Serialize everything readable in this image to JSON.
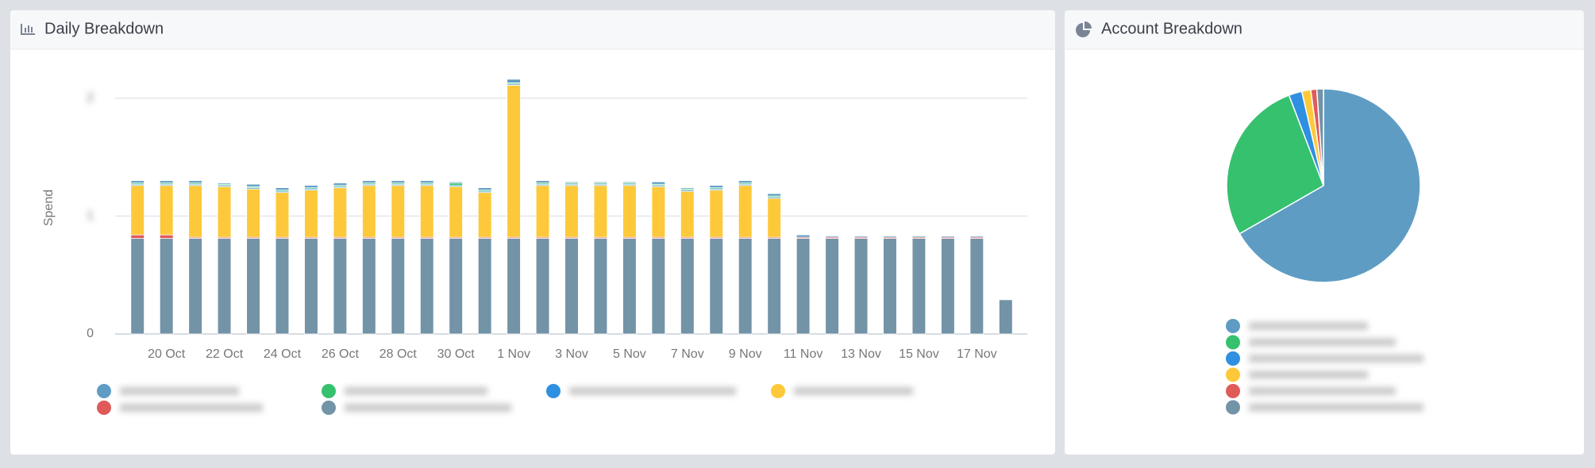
{
  "chart_data": [
    {
      "type": "bar",
      "stacked": true,
      "title": "Daily Breakdown",
      "y_label": "Spend",
      "categories": [
        null,
        "20 Oct",
        null,
        "22 Oct",
        null,
        "24 Oct",
        null,
        "26 Oct",
        null,
        "28 Oct",
        null,
        "30 Oct",
        null,
        "1 Nov",
        null,
        "3 Nov",
        null,
        "5 Nov",
        null,
        "7 Nov",
        null,
        "9 Nov",
        null,
        "11 Nov",
        null,
        "13 Nov",
        null,
        "15 Nov",
        null,
        "17 Nov",
        null
      ],
      "ylim": [
        0,
        2.2
      ],
      "yticks": [
        0,
        1,
        2
      ],
      "grid": true,
      "series": [
        {
          "color": "#5e9cc4",
          "values": [
            0.02,
            0.02,
            0.02,
            0.01,
            0.02,
            0.02,
            0.02,
            0.02,
            0.02,
            0.02,
            0.02,
            0.01,
            0.02,
            0.03,
            0.02,
            0.01,
            0.01,
            0.01,
            0.02,
            0.01,
            0.02,
            0.02,
            0.02,
            0.02,
            0.01,
            0.01,
            0.01,
            0.01,
            0.01,
            0.01,
            0
          ]
        },
        {
          "color": "#36c16f",
          "values": [
            0.01,
            0.01,
            0.01,
            0.01,
            0.01,
            0.01,
            0.01,
            0.01,
            0.01,
            0.01,
            0.01,
            0.02,
            0.01,
            0.01,
            0.01,
            0.01,
            0.01,
            0.01,
            0.01,
            0.01,
            0.01,
            0.01,
            0.01,
            0,
            0,
            0,
            0,
            0,
            0,
            0,
            0
          ]
        },
        {
          "color": "#2f8fe0",
          "values": [
            0.01,
            0.01,
            0.01,
            0.01,
            0.01,
            0.01,
            0.01,
            0.01,
            0.01,
            0.01,
            0.01,
            0.01,
            0.01,
            0.01,
            0.01,
            0.01,
            0.01,
            0.01,
            0.01,
            0.01,
            0.01,
            0.01,
            0.01,
            0,
            0,
            0,
            0,
            0,
            0,
            0,
            0
          ]
        },
        {
          "color": "#fdc93a",
          "values": [
            0.42,
            0.42,
            0.44,
            0.43,
            0.41,
            0.38,
            0.4,
            0.42,
            0.44,
            0.44,
            0.44,
            0.43,
            0.38,
            1.29,
            0.44,
            0.44,
            0.44,
            0.44,
            0.43,
            0.39,
            0.4,
            0.44,
            0.33,
            0,
            0,
            0,
            0,
            0,
            0,
            0,
            0
          ]
        },
        {
          "color": "#e05a5a",
          "values": [
            0.03,
            0.03,
            0.01,
            0.01,
            0.01,
            0.01,
            0.01,
            0.01,
            0.01,
            0.01,
            0.01,
            0.01,
            0.01,
            0.01,
            0.01,
            0.01,
            0.01,
            0.01,
            0.01,
            0.01,
            0.01,
            0.01,
            0.01,
            0.01,
            0.01,
            0.01,
            0.01,
            0.01,
            0.01,
            0.01,
            0
          ]
        },
        {
          "color": "#7393a7",
          "values": [
            0.81,
            0.81,
            0.81,
            0.81,
            0.81,
            0.81,
            0.81,
            0.81,
            0.81,
            0.81,
            0.81,
            0.81,
            0.81,
            0.81,
            0.81,
            0.81,
            0.81,
            0.81,
            0.81,
            0.81,
            0.81,
            0.81,
            0.81,
            0.81,
            0.81,
            0.81,
            0.81,
            0.81,
            0.81,
            0.81,
            0.29
          ]
        }
      ]
    },
    {
      "type": "pie",
      "title": "Account Breakdown",
      "values": [
        66.7,
        27.5,
        2.2,
        1.5,
        1.0,
        1.1
      ],
      "colors": [
        "#5e9cc4",
        "#36c16f",
        "#2f8fe0",
        "#fdc93a",
        "#e05a5a",
        "#7393a7"
      ]
    }
  ]
}
